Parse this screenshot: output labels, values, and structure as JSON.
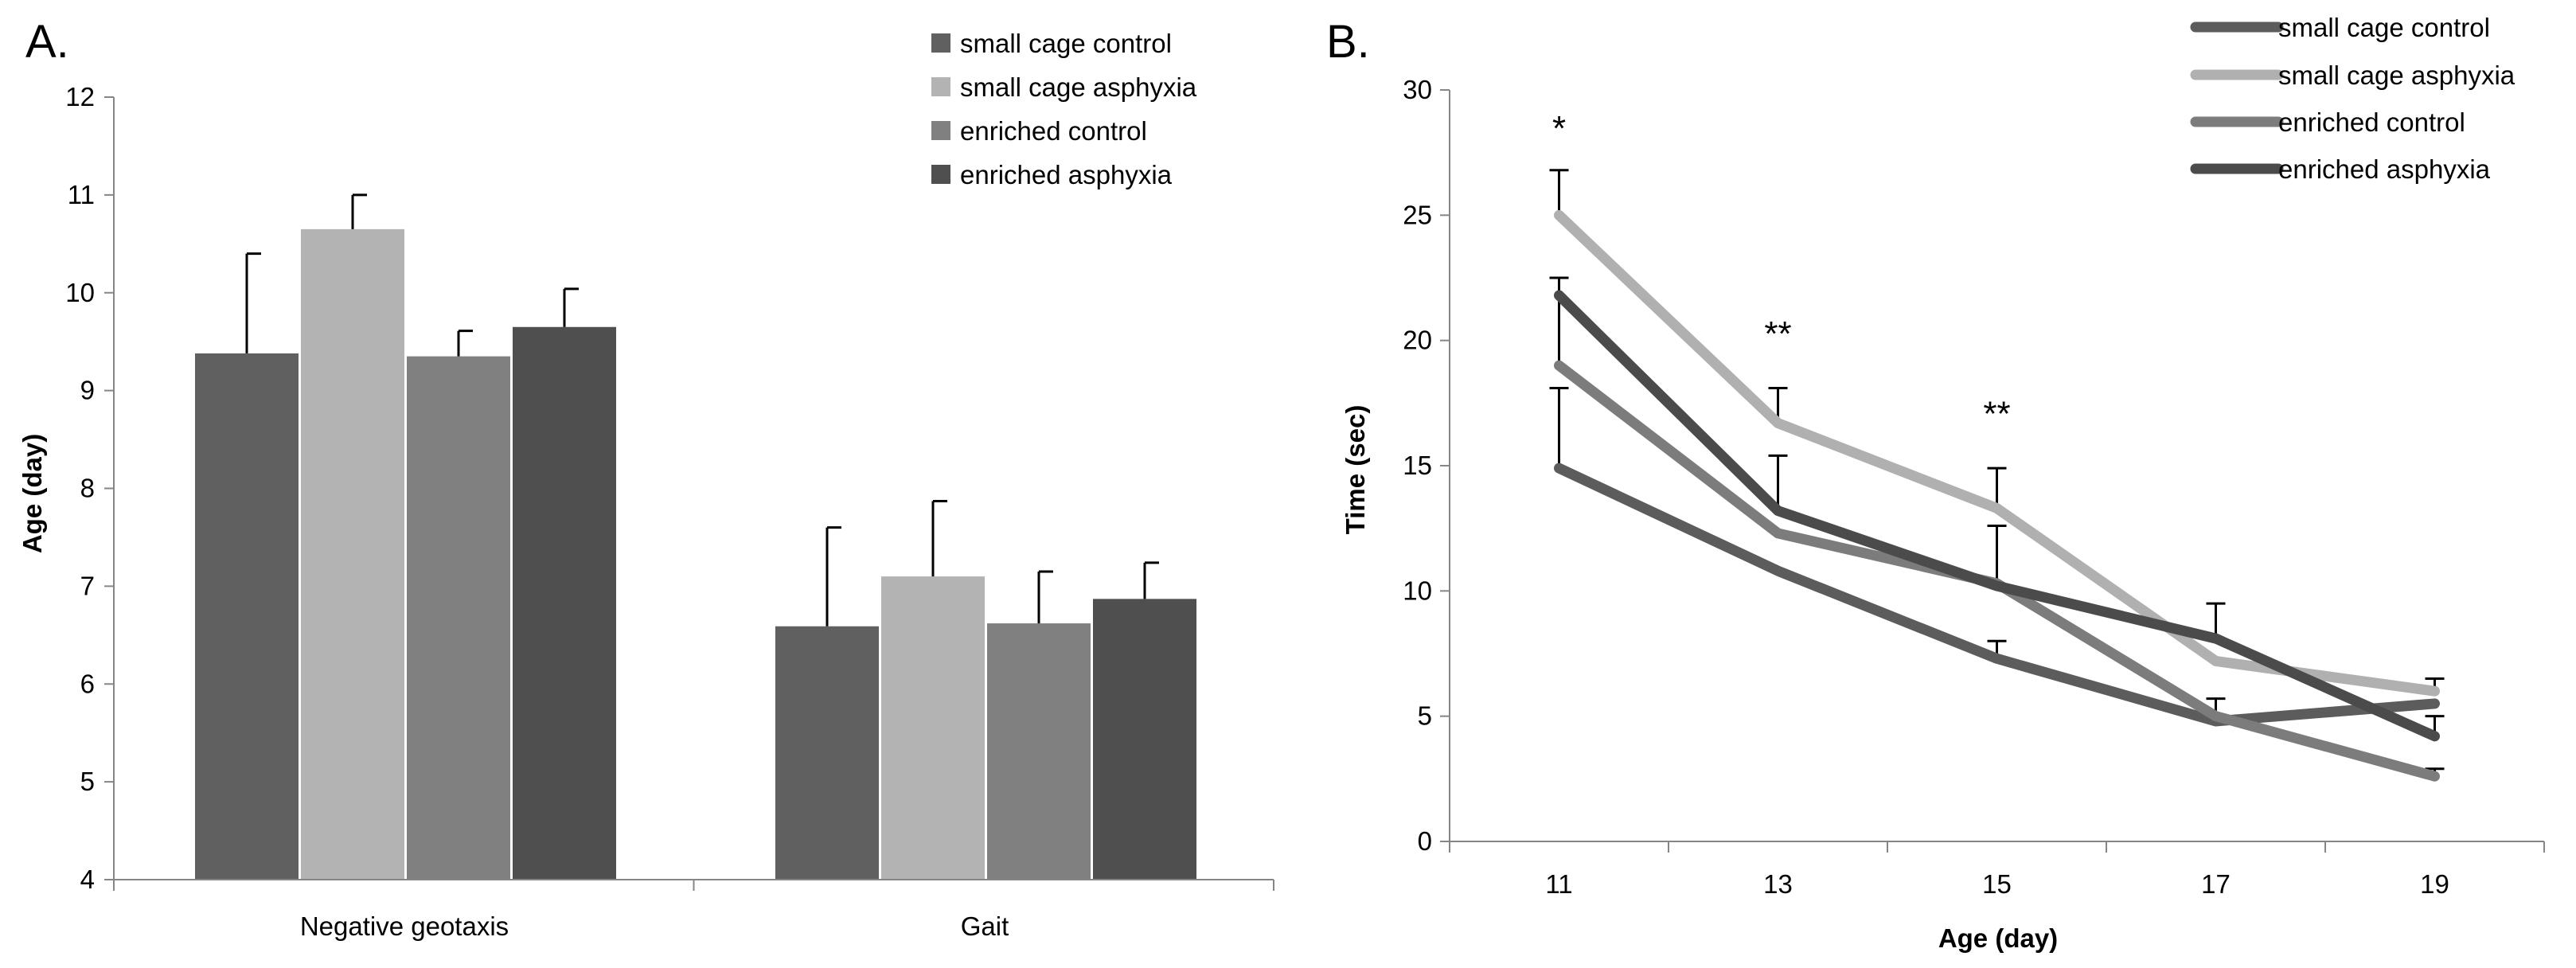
{
  "chart_data": [
    {
      "type": "bar",
      "panel_label": "A.",
      "title": "",
      "xlabel": "",
      "ylabel": "Age (day)",
      "ylim": [
        4,
        12
      ],
      "yticks": [
        "4",
        "5",
        "6",
        "7",
        "8",
        "9",
        "10",
        "11",
        "12"
      ],
      "categories": [
        "Negative geotaxis",
        "Gait"
      ],
      "legend_position": "top-right",
      "series": [
        {
          "name": "small cage control",
          "color": "#606060",
          "values": [
            9.38,
            6.59
          ],
          "errors": [
            1.02,
            1.01
          ]
        },
        {
          "name": "small cage asphyxia",
          "color": "#b3b3b3",
          "values": [
            10.65,
            7.1
          ],
          "errors": [
            0.35,
            0.77
          ]
        },
        {
          "name": "enriched control",
          "color": "#808080",
          "values": [
            9.35,
            6.62
          ],
          "errors": [
            0.26,
            0.53
          ]
        },
        {
          "name": "enriched asphyxia",
          "color": "#4f4f4f",
          "values": [
            9.65,
            6.87
          ],
          "errors": [
            0.39,
            0.37
          ]
        }
      ]
    },
    {
      "type": "line",
      "panel_label": "B.",
      "title": "",
      "xlabel": "Age (day)",
      "ylabel": "Time (sec)",
      "ylim": [
        0,
        30
      ],
      "yticks": [
        "0",
        "5",
        "10",
        "15",
        "20",
        "25",
        "30"
      ],
      "x": [
        11,
        13,
        15,
        17,
        19
      ],
      "xticks": [
        "11",
        "13",
        "15",
        "17",
        "19"
      ],
      "legend_position": "top-right",
      "annotations": [
        {
          "x": 11,
          "y": 28,
          "text": "*"
        },
        {
          "x": 13,
          "y": 19.8,
          "text": "**"
        },
        {
          "x": 15,
          "y": 16.6,
          "text": "**"
        }
      ],
      "series": [
        {
          "name": "small cage control",
          "color": "#5c5c5c",
          "values": [
            14.9,
            10.8,
            7.3,
            4.8,
            5.5
          ],
          "errors": [
            3.2,
            0,
            0.7,
            0,
            0
          ]
        },
        {
          "name": "small cage asphyxia",
          "color": "#b0b0b0",
          "values": [
            25,
            16.7,
            13.3,
            7.2,
            6
          ],
          "errors": [
            1.8,
            1.4,
            1.6,
            0,
            0.5
          ]
        },
        {
          "name": "enriched control",
          "color": "#7c7c7c",
          "values": [
            19,
            12.3,
            10.3,
            5,
            2.6
          ],
          "errors": [
            3.5,
            0,
            2.3,
            0.7,
            0.3
          ]
        },
        {
          "name": "enriched asphyxia",
          "color": "#4b4b4b",
          "values": [
            21.8,
            13.2,
            10.2,
            8.1,
            4.2
          ],
          "errors": [
            0,
            2.2,
            0,
            1.4,
            0.8
          ]
        }
      ]
    }
  ]
}
